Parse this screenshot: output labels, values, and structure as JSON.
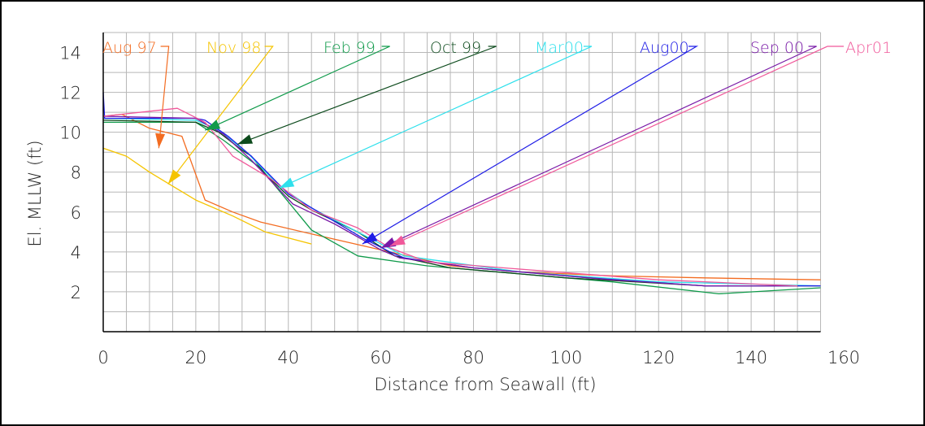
{
  "chart_data": {
    "type": "line",
    "title": "",
    "xlabel": "Distance from Seawall (ft)",
    "ylabel": "El. MLLW (ft)",
    "xlim": [
      0,
      160
    ],
    "ylim": [
      0,
      15
    ],
    "x_ticks": [
      "0",
      "20",
      "40",
      "60",
      "80",
      "100",
      "120",
      "140",
      "160"
    ],
    "y_ticks": [
      "2",
      "4",
      "6",
      "8",
      "10",
      "12",
      "14"
    ],
    "grid": true,
    "legend_placement": "top (labels with leader arrows)",
    "series": [
      {
        "name": "Aug 97",
        "color": "#f36c21",
        "points": [
          [
            0,
            10.8
          ],
          [
            4,
            10.9
          ],
          [
            10,
            10.2
          ],
          [
            17,
            9.8
          ],
          [
            22,
            6.6
          ],
          [
            28,
            6.0
          ],
          [
            34,
            5.5
          ],
          [
            45,
            4.9
          ],
          [
            60,
            4.1
          ],
          [
            75,
            3.3
          ],
          [
            90,
            3.0
          ],
          [
            110,
            2.8
          ],
          [
            130,
            2.7
          ],
          [
            155,
            2.6
          ]
        ],
        "arrow_tip": [
          12,
          9.2
        ]
      },
      {
        "name": "Nov 98",
        "color": "#f5c400",
        "points": [
          [
            0,
            9.2
          ],
          [
            5,
            8.8
          ],
          [
            10,
            8.0
          ],
          [
            15,
            7.3
          ],
          [
            20,
            6.6
          ],
          [
            28,
            5.8
          ],
          [
            35,
            5.0
          ],
          [
            45,
            4.4
          ]
        ],
        "arrow_tip": [
          14,
          7.4
        ]
      },
      {
        "name": "Feb 99",
        "color": "#0f9a4a",
        "points": [
          [
            0,
            10.5
          ],
          [
            10,
            10.5
          ],
          [
            20,
            10.5
          ],
          [
            26,
            9.6
          ],
          [
            34,
            8.2
          ],
          [
            45,
            5.1
          ],
          [
            55,
            3.8
          ],
          [
            70,
            3.3
          ],
          [
            90,
            2.9
          ],
          [
            110,
            2.5
          ],
          [
            133,
            1.9
          ],
          [
            155,
            2.2
          ]
        ],
        "arrow_tip": [
          22,
          10.1
        ]
      },
      {
        "name": "Oct 99",
        "color": "#0c4a1c",
        "points": [
          [
            0,
            10.6
          ],
          [
            20,
            10.5
          ],
          [
            25,
            10.0
          ],
          [
            30,
            9.1
          ],
          [
            32,
            8.8
          ],
          [
            35,
            7.9
          ],
          [
            40,
            6.8
          ],
          [
            45,
            6.1
          ],
          [
            55,
            5.0
          ],
          [
            63,
            3.8
          ],
          [
            75,
            3.2
          ],
          [
            100,
            2.7
          ],
          [
            130,
            2.3
          ],
          [
            155,
            2.3
          ]
        ],
        "arrow_tip": [
          29,
          9.4
        ]
      },
      {
        "name": "Mar00",
        "color": "#2ee0ec",
        "points": [
          [
            0,
            10.7
          ],
          [
            20,
            10.6
          ],
          [
            25,
            10.1
          ],
          [
            31,
            9.0
          ],
          [
            38,
            7.3
          ],
          [
            45,
            6.2
          ],
          [
            55,
            5.0
          ],
          [
            65,
            3.8
          ],
          [
            90,
            3.0
          ],
          [
            120,
            2.5
          ],
          [
            155,
            2.3
          ]
        ],
        "arrow_tip": [
          38,
          7.2
        ]
      },
      {
        "name": "Aug00",
        "color": "#1f1de6",
        "points": [
          [
            0,
            12.0
          ],
          [
            0.3,
            10.7
          ],
          [
            20,
            10.7
          ],
          [
            22,
            10.6
          ],
          [
            27,
            9.8
          ],
          [
            32,
            8.8
          ],
          [
            40,
            6.9
          ],
          [
            48,
            5.8
          ],
          [
            56,
            4.7
          ],
          [
            62,
            4.0
          ],
          [
            65,
            3.7
          ],
          [
            80,
            3.2
          ],
          [
            105,
            2.7
          ],
          [
            130,
            2.3
          ],
          [
            155,
            2.3
          ]
        ],
        "arrow_tip": [
          56,
          4.4
        ]
      },
      {
        "name": "Sep 00",
        "color": "#7818a6",
        "points": [
          [
            0,
            10.8
          ],
          [
            20,
            10.7
          ],
          [
            26,
            9.9
          ],
          [
            32,
            8.6
          ],
          [
            41,
            6.4
          ],
          [
            50,
            5.4
          ],
          [
            60,
            4.1
          ],
          [
            64,
            3.7
          ],
          [
            80,
            3.2
          ],
          [
            110,
            2.6
          ],
          [
            130,
            2.3
          ],
          [
            150,
            2.3
          ]
        ],
        "arrow_tip": [
          60,
          4.2
        ]
      },
      {
        "name": "Apr01",
        "color": "#f0589a",
        "points": [
          [
            0,
            10.8
          ],
          [
            16,
            11.2
          ],
          [
            22,
            10.5
          ],
          [
            28,
            8.8
          ],
          [
            36,
            7.7
          ],
          [
            45,
            6.1
          ],
          [
            55,
            5.2
          ],
          [
            62,
            4.2
          ],
          [
            70,
            3.5
          ],
          [
            92,
            3.1
          ],
          [
            120,
            2.6
          ],
          [
            150,
            2.3
          ]
        ],
        "arrow_tip": [
          62,
          4.3
        ]
      }
    ]
  }
}
